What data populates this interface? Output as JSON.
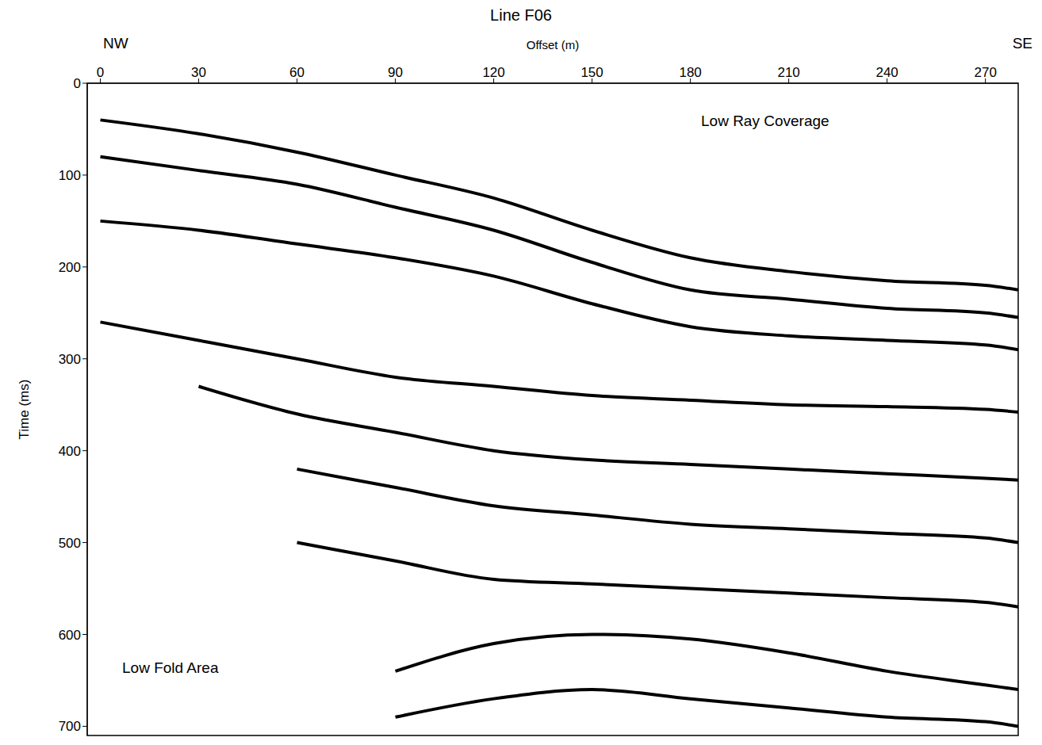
{
  "chart_data": {
    "type": "line",
    "title": "Line F06",
    "left_label": "NW",
    "right_label": "SE",
    "x_label": "Offset (m)",
    "y_label": "Time (ms)",
    "annotations": [
      "Low Ray Coverage",
      "Low Fold Area"
    ],
    "x": [
      0,
      30,
      60,
      90,
      120,
      150,
      180,
      210,
      240,
      270,
      280
    ],
    "series": [
      {
        "color": "#000000",
        "values": [
          40,
          55,
          75,
          100,
          125,
          160,
          190,
          205,
          215,
          220,
          225
        ]
      },
      {
        "color": "#000000",
        "values": [
          80,
          95,
          110,
          135,
          160,
          195,
          225,
          235,
          245,
          250,
          255
        ]
      },
      {
        "color": "#000000",
        "values": [
          150,
          160,
          175,
          190,
          210,
          240,
          265,
          275,
          280,
          285,
          290
        ]
      },
      {
        "color": "#000000",
        "values": [
          260,
          280,
          300,
          320,
          330,
          340,
          345,
          350,
          352,
          355,
          358
        ]
      },
      {
        "color": "#000000",
        "values": [
          null,
          330,
          360,
          380,
          400,
          410,
          415,
          420,
          425,
          430,
          432
        ]
      },
      {
        "color": "#000000",
        "values": [
          null,
          null,
          420,
          440,
          460,
          470,
          480,
          485,
          490,
          495,
          500
        ]
      },
      {
        "color": "#000000",
        "values": [
          null,
          null,
          500,
          520,
          540,
          545,
          550,
          555,
          560,
          565,
          570
        ]
      },
      {
        "color": "#000000",
        "values": [
          null,
          null,
          null,
          640,
          610,
          600,
          605,
          620,
          640,
          655,
          660
        ]
      },
      {
        "color": "#000000",
        "values": [
          null,
          null,
          null,
          690,
          670,
          660,
          670,
          680,
          690,
          695,
          700
        ]
      }
    ],
    "xlim": [
      -4,
      280
    ],
    "xticks": [
      0,
      30,
      60,
      90,
      120,
      150,
      180,
      210,
      240,
      270
    ],
    "ylim": [
      0,
      710
    ],
    "yticks": [
      0,
      100,
      200,
      300,
      400,
      500,
      600,
      700
    ]
  }
}
